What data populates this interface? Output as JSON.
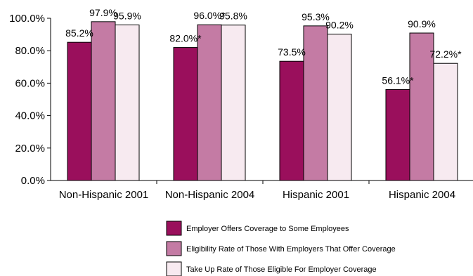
{
  "chart_data": {
    "type": "bar",
    "categories": [
      "Non-Hispanic 2001",
      "Non-Hispanic 2004",
      "Hispanic 2001",
      "Hispanic 2004"
    ],
    "series": [
      {
        "name": "Employer Offers Coverage to Some Employees",
        "color": "#9a0f5c",
        "values": [
          85.2,
          82.0,
          73.5,
          56.1
        ],
        "labels": [
          "85.2%",
          "82.0%*",
          "73.5%",
          "56.1%*"
        ]
      },
      {
        "name": "Eligibility Rate of Those With Employers That Offer Coverage",
        "color": "#c47ba4",
        "values": [
          97.9,
          96.0,
          95.3,
          90.9
        ],
        "labels": [
          "97.9%",
          "96.0%*",
          "95.3%",
          "90.9%"
        ]
      },
      {
        "name": "Take Up Rate of Those Eligible For Employer Coverage",
        "color": "#f7eaf0",
        "values": [
          95.9,
          95.8,
          90.2,
          72.2
        ],
        "labels": [
          "95.9%",
          "95.8%",
          "90.2%",
          "72.2%*"
        ]
      }
    ],
    "ylim": [
      0,
      100
    ],
    "yticks": [
      "0.0%",
      "20.0%",
      "40.0%",
      "60.0%",
      "80.0%",
      "100.0%"
    ],
    "grid": false,
    "legend_position": "bottom-center"
  }
}
